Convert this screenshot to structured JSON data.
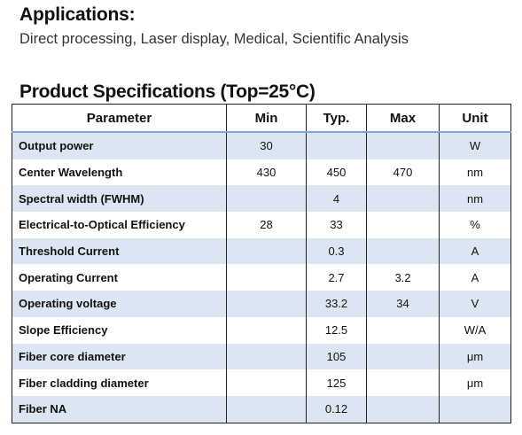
{
  "applications": {
    "heading": "Applications:",
    "text": "Direct processing, Laser display, Medical, Scientific Analysis"
  },
  "specifications": {
    "heading": "Product Specifications (Top=25°C)",
    "columns": {
      "parameter": "Parameter",
      "min": "Min",
      "typ": "Typ.",
      "max": "Max",
      "unit": "Unit"
    },
    "rows": [
      {
        "parameter": "Output power",
        "min": "30",
        "typ": "",
        "max": "",
        "unit": "W"
      },
      {
        "parameter": "Center Wavelength",
        "min": "430",
        "typ": "450",
        "max": "470",
        "unit": "nm"
      },
      {
        "parameter": "Spectral width (FWHM)",
        "min": "",
        "typ": "4",
        "max": "",
        "unit": "nm"
      },
      {
        "parameter": "Electrical-to-Optical Efficiency",
        "min": "28",
        "typ": "33",
        "max": "",
        "unit": "%"
      },
      {
        "parameter": "Threshold Current",
        "min": "",
        "typ": "0.3",
        "max": "",
        "unit": "A"
      },
      {
        "parameter": "Operating Current",
        "min": "",
        "typ": "2.7",
        "max": "3.2",
        "unit": "A"
      },
      {
        "parameter": "Operating voltage",
        "min": "",
        "typ": "33.2",
        "max": "34",
        "unit": "V"
      },
      {
        "parameter": "Slope Efficiency",
        "min": "",
        "typ": "12.5",
        "max": "",
        "unit": "W/A"
      },
      {
        "parameter": "Fiber core diameter",
        "min": "",
        "typ": "105",
        "max": "",
        "unit": "μm"
      },
      {
        "parameter": "Fiber cladding diameter",
        "min": "",
        "typ": "125",
        "max": "",
        "unit": "μm"
      },
      {
        "parameter": "Fiber NA",
        "min": "",
        "typ": "0.12",
        "max": "",
        "unit": ""
      }
    ]
  },
  "colors": {
    "band": "#dce6f2",
    "header_rule": "#7fa6d6",
    "border": "#222222"
  }
}
